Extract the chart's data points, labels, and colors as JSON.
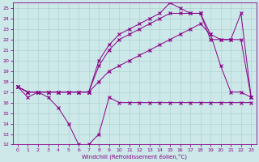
{
  "xlabel": "Windchill (Refroidissement éolien,°C)",
  "bg_color": "#cce8e8",
  "line_color": "#880088",
  "grid_color": "#aacccc",
  "xlim": [
    -0.5,
    23.5
  ],
  "ylim": [
    12,
    25.5
  ],
  "yticks": [
    12,
    13,
    14,
    15,
    16,
    17,
    18,
    19,
    20,
    21,
    22,
    23,
    24,
    25
  ],
  "xticks": [
    0,
    1,
    2,
    3,
    4,
    5,
    6,
    7,
    8,
    9,
    10,
    11,
    12,
    13,
    14,
    15,
    16,
    17,
    18,
    19,
    20,
    21,
    22,
    23
  ],
  "line1_x": [
    0,
    1,
    2,
    3,
    4,
    5,
    6,
    7,
    8,
    9,
    10,
    11,
    12,
    13,
    14,
    15,
    16,
    17,
    18,
    19,
    20,
    21,
    22,
    23
  ],
  "line1_y": [
    17.5,
    16.5,
    17.0,
    16.5,
    15.5,
    14.0,
    12.0,
    12.0,
    13.0,
    16.5,
    16.0,
    16.0,
    16.0,
    16.0,
    16.0,
    16.0,
    16.0,
    16.0,
    16.0,
    16.0,
    16.0,
    16.0,
    16.0,
    16.0
  ],
  "line2_x": [
    0,
    1,
    2,
    3,
    4,
    5,
    6,
    7,
    8,
    9,
    10,
    11,
    12,
    13,
    14,
    15,
    16,
    17,
    18,
    19,
    20,
    21,
    22,
    23
  ],
  "line2_y": [
    17.5,
    17.0,
    17.0,
    17.0,
    17.0,
    17.0,
    17.0,
    17.0,
    20.0,
    21.5,
    22.5,
    23.0,
    23.5,
    24.0,
    24.5,
    25.5,
    25.0,
    24.5,
    24.5,
    22.5,
    19.5,
    17.0,
    17.0,
    16.5
  ],
  "line3_x": [
    0,
    1,
    2,
    3,
    4,
    5,
    6,
    7,
    8,
    9,
    10,
    11,
    12,
    13,
    14,
    15,
    16,
    17,
    18,
    19,
    20,
    21,
    22,
    23
  ],
  "line3_y": [
    17.5,
    17.0,
    17.0,
    17.0,
    17.0,
    17.0,
    17.0,
    17.0,
    19.5,
    21.0,
    22.0,
    22.5,
    23.0,
    23.5,
    24.0,
    24.5,
    24.5,
    24.5,
    24.5,
    22.0,
    22.0,
    22.0,
    24.5,
    16.5
  ],
  "line4_x": [
    0,
    1,
    2,
    3,
    4,
    5,
    6,
    7,
    8,
    9,
    10,
    11,
    12,
    13,
    14,
    15,
    16,
    17,
    18,
    19,
    20,
    21,
    22,
    23
  ],
  "line4_y": [
    17.5,
    17.0,
    17.0,
    17.0,
    17.0,
    17.0,
    17.0,
    17.0,
    18.0,
    19.0,
    19.5,
    20.0,
    20.5,
    21.0,
    21.5,
    22.0,
    22.5,
    23.0,
    23.5,
    22.5,
    22.0,
    22.0,
    22.0,
    16.5
  ]
}
